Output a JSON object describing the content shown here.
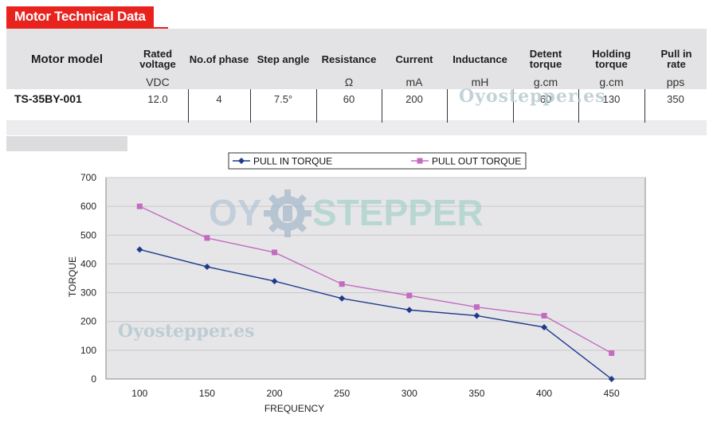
{
  "title": "Motor Technical Data",
  "table": {
    "model_header": "Motor model",
    "columns": [
      {
        "label": "Rated voltage",
        "unit": "VDC",
        "value": "12.0"
      },
      {
        "label": "No.of phase",
        "unit": "",
        "value": "4"
      },
      {
        "label": "Step angle",
        "unit": "",
        "value": "7.5°"
      },
      {
        "label": "Resistance",
        "unit": "Ω",
        "value": "60"
      },
      {
        "label": "Current",
        "unit": "mA",
        "value": "200"
      },
      {
        "label": "Inductance",
        "unit": "mH",
        "value": ""
      },
      {
        "label": "Detent torque",
        "unit": "g.cm",
        "value": "60"
      },
      {
        "label": "Holding torque",
        "unit": "g.cm",
        "value": "130"
      },
      {
        "label": "Pull in rate",
        "unit": "pps",
        "value": "350"
      }
    ],
    "model": "TS-35BY-001"
  },
  "watermarks": {
    "text_1": "Oyostepper.es",
    "text_2": "Oyostepper.es",
    "logo_left": "OY",
    "logo_right": "STEPPER"
  },
  "colors": {
    "brand_red": "#e8231e",
    "pull_in": "#1f3a8a",
    "pull_out": "#c46bc0",
    "plot_bg": "#e6e6e9"
  },
  "chart_data": {
    "type": "line",
    "x": [
      100,
      150,
      200,
      250,
      300,
      350,
      400,
      450
    ],
    "categories": [
      "100",
      "150",
      "200",
      "250",
      "300",
      "350",
      "400",
      "450"
    ],
    "series": [
      {
        "name": "PULL IN TORQUE",
        "values": [
          450,
          390,
          340,
          280,
          240,
          220,
          180,
          0
        ],
        "marker": "diamond",
        "color": "#1f3a8a"
      },
      {
        "name": "PULL OUT TORQUE",
        "values": [
          600,
          490,
          440,
          330,
          290,
          250,
          220,
          90
        ],
        "marker": "square",
        "color": "#c46bc0"
      }
    ],
    "xlabel": "FREQUENCY",
    "ylabel": "TORQUE",
    "ylim": [
      0,
      700
    ],
    "yticks": [
      0,
      100,
      200,
      300,
      400,
      500,
      600,
      700
    ],
    "grid": true,
    "legend": "top-center"
  }
}
